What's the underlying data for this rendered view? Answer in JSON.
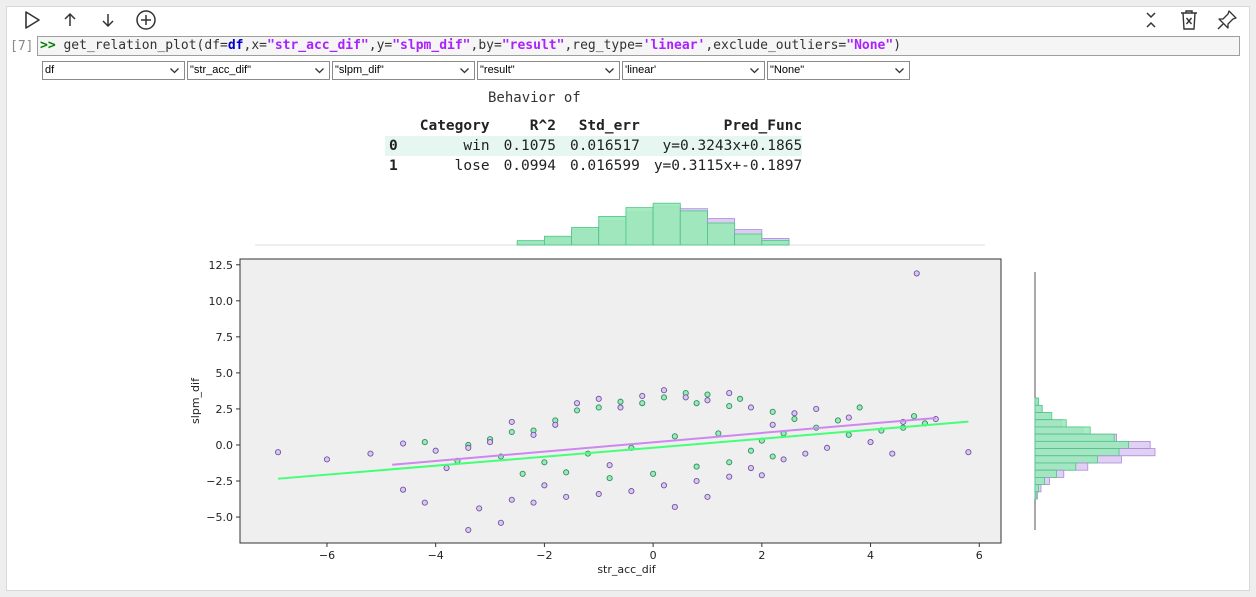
{
  "cell": {
    "prompt": "[7]",
    "code_tokens": [
      {
        "t": ">>",
        "c": "op"
      },
      {
        "t": " get_relation_plot(",
        "c": "fn"
      },
      {
        "t": "df",
        "c": "pl"
      },
      {
        "t": "=",
        "c": "pl"
      },
      {
        "t": "df",
        "c": "kw"
      },
      {
        "t": ",x=",
        "c": "pl"
      },
      {
        "t": "\"str_acc_dif\"",
        "c": "str"
      },
      {
        "t": ",y=",
        "c": "pl"
      },
      {
        "t": "\"slpm_dif\"",
        "c": "str"
      },
      {
        "t": ",by=",
        "c": "pl"
      },
      {
        "t": "\"result\"",
        "c": "str"
      },
      {
        "t": ",reg_type=",
        "c": "pl"
      },
      {
        "t": "'linear'",
        "c": "str"
      },
      {
        "t": ",exclude_outliers=",
        "c": "pl"
      },
      {
        "t": "\"None\"",
        "c": "str"
      },
      {
        "t": ")",
        "c": "pl"
      }
    ]
  },
  "widgets": [
    {
      "name": "df-dropdown",
      "value": "df"
    },
    {
      "name": "x-dropdown",
      "value": "\"str_acc_dif\""
    },
    {
      "name": "y-dropdown",
      "value": "\"slpm_dif\""
    },
    {
      "name": "by-dropdown",
      "value": "\"result\""
    },
    {
      "name": "reg-type-dropdown",
      "value": "'linear'"
    },
    {
      "name": "exclude-outliers-dropdown",
      "value": "\"None\""
    }
  ],
  "output": {
    "title": "Behavior of",
    "table": {
      "columns": [
        "Category",
        "R^2",
        "Std_err",
        "Pred_Func"
      ],
      "rows": [
        {
          "index": "0",
          "cells": [
            "win",
            "0.1075",
            "0.016517",
            "y=0.3243x+0.1865"
          ]
        },
        {
          "index": "1",
          "cells": [
            "lose",
            "0.0994",
            "0.016599",
            "y=0.3115x+-0.1897"
          ]
        }
      ]
    }
  },
  "colors": {
    "win": "#48c884",
    "win_fill": "#9aeab8",
    "win_line": "#44ff77",
    "lose": "#a78bd6",
    "lose_fill": "#dcc7f2",
    "lose_line": "#cc88ee",
    "plot_bg": "#efefef"
  },
  "icons": [
    "run-icon",
    "move-up-icon",
    "move-down-icon",
    "add-cell-icon",
    "collapse-icon",
    "delete-icon",
    "pin-icon"
  ],
  "chart_data": {
    "type": "scatter",
    "title": "",
    "xlabel": "str_acc_dif",
    "ylabel": "slpm_dif",
    "xlim": [
      -7.6,
      6.4
    ],
    "ylim": [
      -6.8,
      12.9
    ],
    "x_ticks": [
      -6,
      -4,
      -2,
      0,
      2,
      4,
      6
    ],
    "x_tick_labels": [
      "−6",
      "−4",
      "−2",
      "0",
      "2",
      "4",
      "6"
    ],
    "y_ticks": [
      -5.0,
      -2.5,
      0.0,
      2.5,
      5.0,
      7.5,
      10.0,
      12.5
    ],
    "y_tick_labels": [
      "−5.0",
      "−2.5",
      "0.0",
      "2.5",
      "5.0",
      "7.5",
      "10.0",
      "12.5"
    ],
    "grid": false,
    "series": [
      {
        "name": "win",
        "regression": {
          "slope": 0.3243,
          "intercept": 0.1865,
          "x_range": [
            -4.8,
            5.2
          ]
        },
        "points": [
          [
            4.8,
            2.0
          ],
          [
            5.0,
            1.5
          ],
          [
            3.8,
            2.6
          ],
          [
            3.4,
            1.7
          ],
          [
            2.6,
            1.8
          ],
          [
            2.2,
            2.3
          ],
          [
            1.6,
            3.2
          ],
          [
            1.4,
            2.7
          ],
          [
            1.0,
            3.5
          ],
          [
            0.8,
            2.9
          ],
          [
            0.6,
            3.6
          ],
          [
            0.2,
            3.3
          ],
          [
            -0.2,
            2.9
          ],
          [
            -0.6,
            3.0
          ],
          [
            -1.0,
            2.6
          ],
          [
            -1.4,
            2.4
          ],
          [
            -1.8,
            1.7
          ],
          [
            -2.2,
            1.0
          ],
          [
            -2.6,
            0.9
          ],
          [
            -3.0,
            0.4
          ],
          [
            -3.4,
            0.0
          ],
          [
            -4.2,
            0.2
          ],
          [
            2.0,
            0.3
          ],
          [
            2.4,
            0.8
          ],
          [
            3.0,
            1.2
          ],
          [
            3.6,
            0.7
          ],
          [
            4.2,
            1.0
          ],
          [
            4.6,
            1.2
          ],
          [
            1.2,
            0.8
          ],
          [
            0.4,
            0.6
          ],
          [
            -0.4,
            -0.2
          ],
          [
            -1.2,
            -0.6
          ],
          [
            -2.0,
            -1.2
          ],
          [
            -2.8,
            -0.8
          ],
          [
            -3.6,
            -1.1
          ],
          [
            1.8,
            -0.4
          ],
          [
            0.8,
            -1.5
          ],
          [
            0.0,
            -2.0
          ],
          [
            -0.8,
            -2.3
          ],
          [
            -1.6,
            -1.9
          ],
          [
            -2.4,
            -2.0
          ],
          [
            1.4,
            -1.2
          ],
          [
            2.2,
            -0.8
          ]
        ]
      },
      {
        "name": "lose",
        "regression": {
          "slope": 0.3115,
          "intercept": -0.1897,
          "x_range": [
            -6.9,
            5.8
          ]
        },
        "points": [
          [
            4.85,
            11.9
          ],
          [
            5.2,
            1.8
          ],
          [
            4.6,
            1.6
          ],
          [
            4.0,
            0.2
          ],
          [
            3.6,
            1.9
          ],
          [
            3.0,
            2.5
          ],
          [
            2.6,
            2.2
          ],
          [
            2.2,
            1.4
          ],
          [
            1.8,
            2.6
          ],
          [
            1.4,
            3.6
          ],
          [
            1.0,
            3.1
          ],
          [
            0.6,
            3.3
          ],
          [
            0.2,
            3.8
          ],
          [
            -0.2,
            3.4
          ],
          [
            -0.6,
            2.6
          ],
          [
            -1.0,
            3.2
          ],
          [
            -1.4,
            2.9
          ],
          [
            -1.8,
            1.4
          ],
          [
            -2.2,
            0.7
          ],
          [
            -2.6,
            1.6
          ],
          [
            -3.0,
            0.2
          ],
          [
            -3.4,
            -0.2
          ],
          [
            -4.0,
            -0.4
          ],
          [
            -4.6,
            0.1
          ],
          [
            -5.2,
            -0.6
          ],
          [
            -6.0,
            -1.0
          ],
          [
            -6.9,
            -0.5
          ],
          [
            5.8,
            -0.5
          ],
          [
            2.8,
            -0.6
          ],
          [
            2.0,
            -2.1
          ],
          [
            1.4,
            -2.2
          ],
          [
            0.8,
            -2.5
          ],
          [
            0.2,
            -2.8
          ],
          [
            -0.4,
            -3.2
          ],
          [
            -1.0,
            -3.4
          ],
          [
            -1.6,
            -3.6
          ],
          [
            -2.2,
            -4.0
          ],
          [
            -2.6,
            -3.8
          ],
          [
            -2.8,
            -5.4
          ],
          [
            -3.2,
            -4.4
          ],
          [
            -3.4,
            -5.9
          ],
          [
            -4.2,
            -4.0
          ],
          [
            -4.6,
            -3.1
          ],
          [
            0.4,
            -4.3
          ],
          [
            1.0,
            -3.6
          ],
          [
            1.8,
            -1.6
          ],
          [
            2.4,
            -1.0
          ],
          [
            3.2,
            -0.2
          ],
          [
            4.4,
            -0.6
          ],
          [
            -0.8,
            -1.4
          ],
          [
            -2.0,
            -2.8
          ],
          [
            -3.8,
            -1.6
          ]
        ]
      }
    ],
    "top_histogram": {
      "bins": [
        -2.25,
        -1.75,
        -1.25,
        -0.75,
        -0.25,
        0.25,
        0.75,
        1.25,
        1.75,
        2.25
      ],
      "win": [
        4,
        8,
        16,
        26,
        34,
        38,
        31,
        20,
        10,
        4
      ],
      "lose": [
        3,
        7,
        14,
        22,
        30,
        35,
        33,
        24,
        14,
        6
      ]
    },
    "right_histogram": {
      "bins": [
        3.0,
        2.5,
        2.0,
        1.5,
        1.0,
        0.5,
        0.0,
        -0.5,
        -1.0,
        -1.5,
        -2.0,
        -2.5,
        -3.0,
        -3.5
      ],
      "lose": [
        2,
        5,
        12,
        22,
        40,
        68,
        96,
        100,
        72,
        44,
        24,
        12,
        5,
        2
      ],
      "win": [
        3,
        6,
        14,
        26,
        46,
        66,
        78,
        70,
        52,
        34,
        18,
        8,
        3,
        1
      ]
    }
  }
}
